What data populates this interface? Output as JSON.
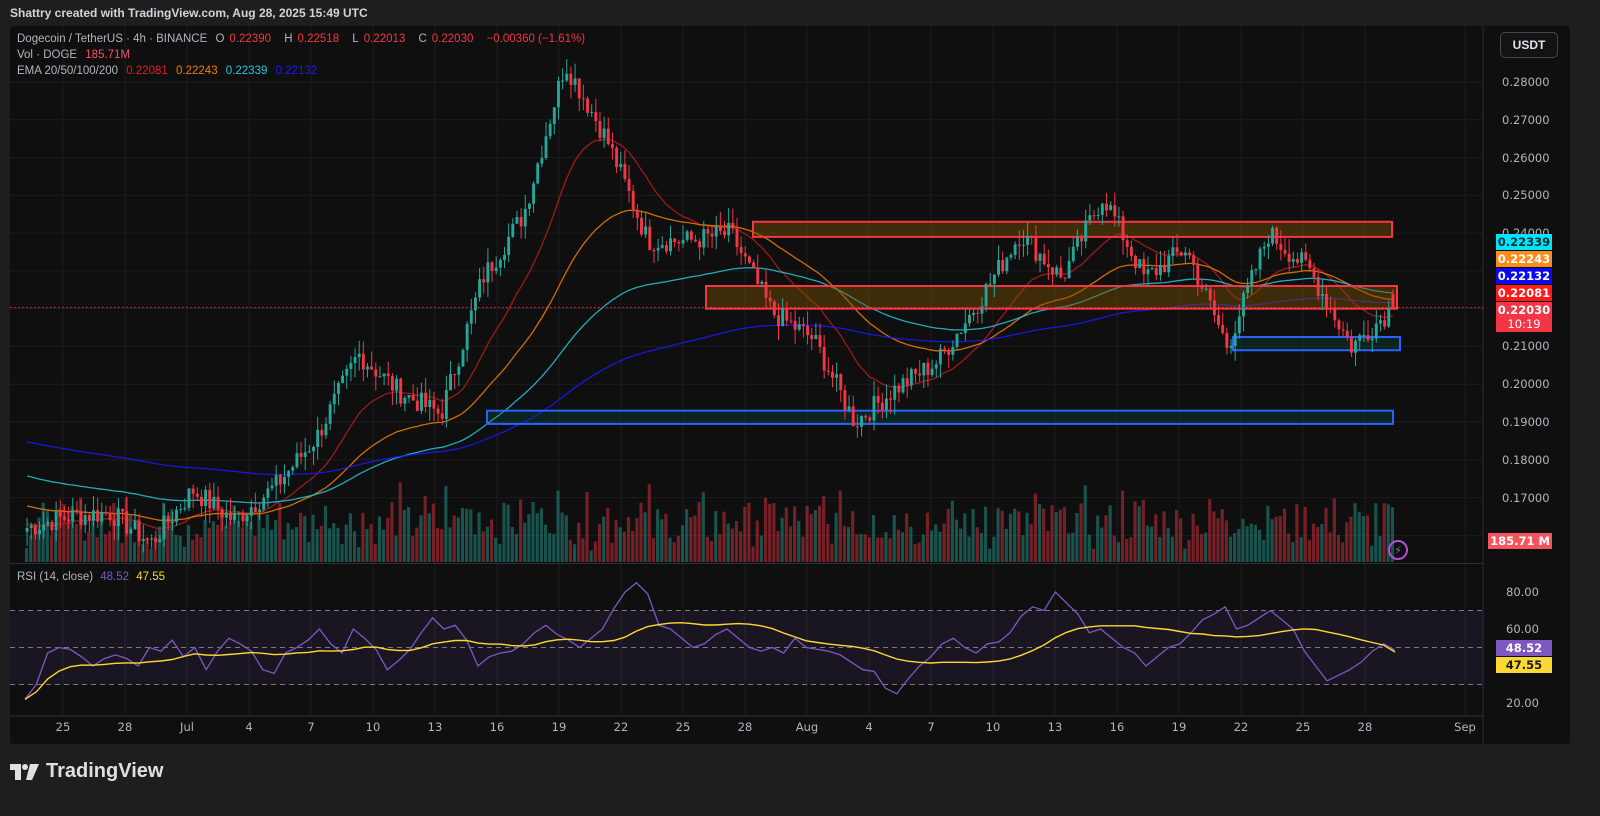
{
  "credit": "Shattry created with TradingView.com, Aug 28, 2025 15:49 UTC",
  "legend": {
    "symbol": "Dogecoin / TetherUS · 4h · BINANCE",
    "open_label": "O",
    "open": "0.22390",
    "high_label": "H",
    "high": "0.22518",
    "low_label": "L",
    "low": "0.22013",
    "close_label": "C",
    "close": "0.22030",
    "change": "−0.00360 (−1.61%)",
    "vol_label": "Vol · DOGE",
    "vol": "185.71M",
    "ema_label": "EMA 20/50/100/200",
    "ema20": "0.22081",
    "ema50": "0.22243",
    "ema100": "0.22339",
    "ema200": "0.22132"
  },
  "currency_button": "USDT",
  "rsi_legend": {
    "label": "RSI (14, close)",
    "rsi": "48.52",
    "ma": "47.55"
  },
  "brand": "TradingView",
  "colors": {
    "up": "#26a69a",
    "down": "#f23645",
    "ema20": "#b71c1c",
    "ema50": "#f57c00",
    "ema100": "#26c6da",
    "ema200": "#1a1aff",
    "rsi": "#7e57c2",
    "rsi_ma": "#fdd835",
    "resistance": "#f23645",
    "support": "#2962ff"
  },
  "chart_data": [
    {
      "type": "candlestick",
      "title": "Dogecoin / TetherUS · 4h · BINANCE",
      "xlabel": "",
      "ylabel": "USDT",
      "ylim": [
        0.16,
        0.285
      ],
      "x_ticks": [
        "25",
        "28",
        "Jul",
        "4",
        "7",
        "10",
        "13",
        "16",
        "19",
        "22",
        "25",
        "28",
        "Aug",
        "4",
        "7",
        "10",
        "13",
        "16",
        "19",
        "22",
        "25",
        "28",
        "Sep"
      ],
      "y_ticks": [
        "0.28000",
        "0.27000",
        "0.26000",
        "0.25000",
        "0.24000",
        "0.21000",
        "0.20000",
        "0.19000",
        "0.18000",
        "0.17000"
      ],
      "ohlc_last": {
        "open": 0.2239,
        "high": 0.22518,
        "low": 0.22013,
        "close": 0.2203
      },
      "price_path": {
        "x": [
          "Jun 23",
          "Jun 26",
          "Jun 29",
          "Jul 1",
          "Jul 3",
          "Jul 5",
          "Jul 7",
          "Jul 9",
          "Jul 11",
          "Jul 13",
          "Jul 15",
          "Jul 17",
          "Jul 19",
          "Jul 21",
          "Jul 22",
          "Jul 24",
          "Jul 26",
          "Jul 28",
          "Jul 30",
          "Aug 1",
          "Aug 2",
          "Aug 4",
          "Aug 6",
          "Aug 8",
          "Aug 10",
          "Aug 12",
          "Aug 14",
          "Aug 16",
          "Aug 18",
          "Aug 20",
          "Aug 22",
          "Aug 24",
          "Aug 26",
          "Aug 28"
        ],
        "close": [
          0.162,
          0.165,
          0.166,
          0.158,
          0.172,
          0.164,
          0.173,
          0.186,
          0.208,
          0.198,
          0.192,
          0.228,
          0.245,
          0.285,
          0.265,
          0.238,
          0.238,
          0.24,
          0.219,
          0.212,
          0.19,
          0.199,
          0.206,
          0.222,
          0.24,
          0.228,
          0.25,
          0.228,
          0.236,
          0.21,
          0.24,
          0.23,
          0.21,
          0.2203
        ]
      },
      "series": [
        {
          "name": "EMA 20",
          "last": 0.22081
        },
        {
          "name": "EMA 50",
          "last": 0.22243
        },
        {
          "name": "EMA 100",
          "last": 0.22339
        },
        {
          "name": "EMA 200",
          "last": 0.22132
        },
        {
          "name": "Volume (DOGE)",
          "last": "185.71M"
        }
      ],
      "annotations": [
        {
          "type": "resistance_zone",
          "from": 0.239,
          "to": 0.243,
          "start": "Jul 28"
        },
        {
          "type": "resistance_zone",
          "from": 0.22,
          "to": 0.226,
          "start": "Jul 26"
        },
        {
          "type": "support_zone",
          "from": 0.209,
          "to": 0.2125,
          "start": "Aug 21"
        },
        {
          "type": "support_zone",
          "from": 0.1895,
          "to": 0.193,
          "start": "Jul 16"
        }
      ],
      "current_price_label": "0.22030",
      "countdown": "10:19"
    },
    {
      "type": "line",
      "title": "RSI (14, close)",
      "ylim": [
        15,
        88
      ],
      "y_ticks": [
        "80.00",
        "60.00",
        "20.00"
      ],
      "bands": [
        30,
        50,
        70
      ],
      "series": [
        {
          "name": "RSI",
          "last": 48.52,
          "values": [
            22,
            30,
            47,
            50,
            49,
            45,
            40,
            44,
            46,
            44,
            40,
            50,
            48,
            54,
            45,
            50,
            38,
            48,
            55,
            52,
            48,
            38,
            36,
            47,
            50,
            54,
            60,
            52,
            47,
            60,
            55,
            49,
            38,
            43,
            49,
            58,
            66,
            60,
            62,
            54,
            40,
            45,
            47,
            48,
            52,
            58,
            62,
            57,
            54,
            50,
            55,
            60,
            71,
            80,
            85,
            79,
            62,
            60,
            55,
            50,
            52,
            57,
            60,
            55,
            50,
            48,
            50,
            47,
            55,
            50,
            49,
            48,
            46,
            42,
            38,
            37,
            28,
            25,
            33,
            40,
            45,
            52,
            55,
            50,
            47,
            52,
            53,
            58,
            67,
            72,
            70,
            80,
            74,
            68,
            58,
            60,
            55,
            50,
            47,
            40,
            45,
            50,
            52,
            58,
            65,
            68,
            72,
            60,
            62,
            66,
            70,
            65,
            60,
            48,
            40,
            32,
            35,
            38,
            42,
            48,
            52,
            48.52
          ]
        },
        {
          "name": "RSI-based MA",
          "last": 47.55
        }
      ]
    }
  ],
  "axes": {
    "rsi_ticks": [
      "80.00",
      "60.00",
      "20.00"
    ],
    "volume_tag": "185.71 M"
  },
  "price_tags": [
    {
      "label": "0.22339",
      "bg": "#00e5ff",
      "fg": "#0a2a2a"
    },
    {
      "label": "0.22243",
      "bg": "#ff8c1a",
      "fg": "#ffffff"
    },
    {
      "label": "0.22132",
      "bg": "#0a0aef",
      "fg": "#ffffff"
    },
    {
      "label": "0.22081",
      "bg": "#ff1a1a",
      "fg": "#ffffff"
    },
    {
      "label": "0.22030",
      "bg": "#f23645",
      "fg": "#ffffff"
    }
  ],
  "rsi_tags": [
    {
      "label": "48.52",
      "bg": "#7e57c2",
      "fg": "#ffffff"
    },
    {
      "label": "47.55",
      "bg": "#fdd835",
      "fg": "#1a1a1a"
    }
  ]
}
